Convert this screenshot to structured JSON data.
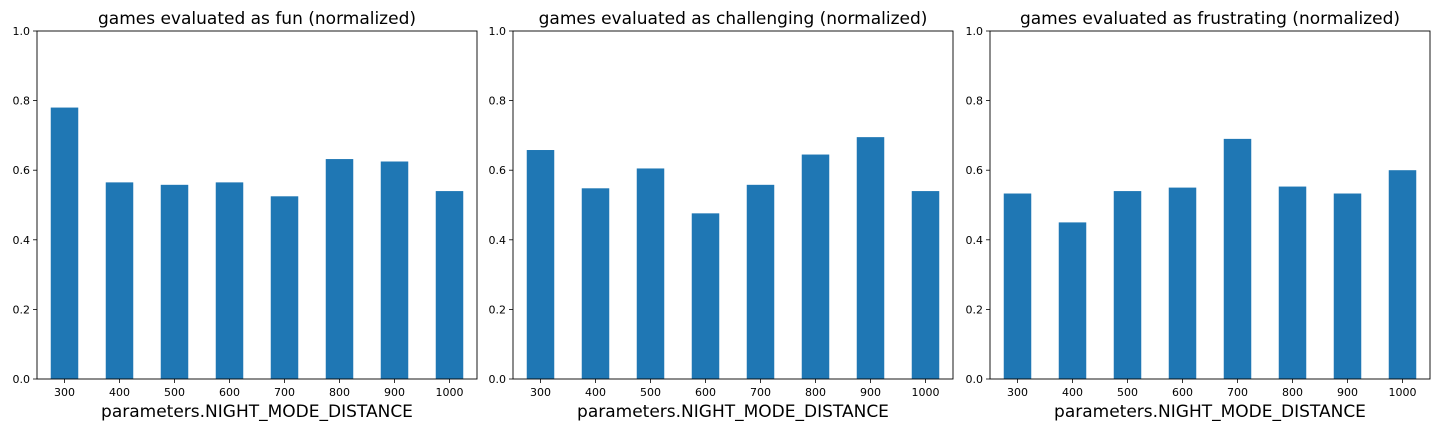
{
  "chart_data": [
    {
      "type": "bar",
      "title": "games evaluated as fun (normalized)",
      "xlabel": "parameters.NIGHT_MODE_DISTANCE",
      "ylabel": "",
      "categories": [
        "300",
        "400",
        "500",
        "600",
        "700",
        "800",
        "900",
        "1000"
      ],
      "values": [
        0.78,
        0.565,
        0.558,
        0.565,
        0.525,
        0.632,
        0.625,
        0.54
      ],
      "ylim": [
        0,
        1.0
      ],
      "yticks": [
        "0.0",
        "0.2",
        "0.4",
        "0.6",
        "0.8",
        "1.0"
      ],
      "bar_color": "#1f77b4",
      "grid": false
    },
    {
      "type": "bar",
      "title": "games evaluated as challenging (normalized)",
      "xlabel": "parameters.NIGHT_MODE_DISTANCE",
      "ylabel": "",
      "categories": [
        "300",
        "400",
        "500",
        "600",
        "700",
        "800",
        "900",
        "1000"
      ],
      "values": [
        0.658,
        0.548,
        0.605,
        0.476,
        0.558,
        0.645,
        0.695,
        0.54
      ],
      "ylim": [
        0,
        1.0
      ],
      "yticks": [
        "0.0",
        "0.2",
        "0.4",
        "0.6",
        "0.8",
        "1.0"
      ],
      "bar_color": "#1f77b4",
      "grid": false
    },
    {
      "type": "bar",
      "title": "games evaluated as frustrating (normalized)",
      "xlabel": "parameters.NIGHT_MODE_DISTANCE",
      "ylabel": "",
      "categories": [
        "300",
        "400",
        "500",
        "600",
        "700",
        "800",
        "900",
        "1000"
      ],
      "values": [
        0.533,
        0.45,
        0.54,
        0.55,
        0.69,
        0.553,
        0.533,
        0.6
      ],
      "ylim": [
        0,
        1.0
      ],
      "yticks": [
        "0.0",
        "0.2",
        "0.4",
        "0.6",
        "0.8",
        "1.0"
      ],
      "bar_color": "#1f77b4",
      "grid": false
    }
  ]
}
